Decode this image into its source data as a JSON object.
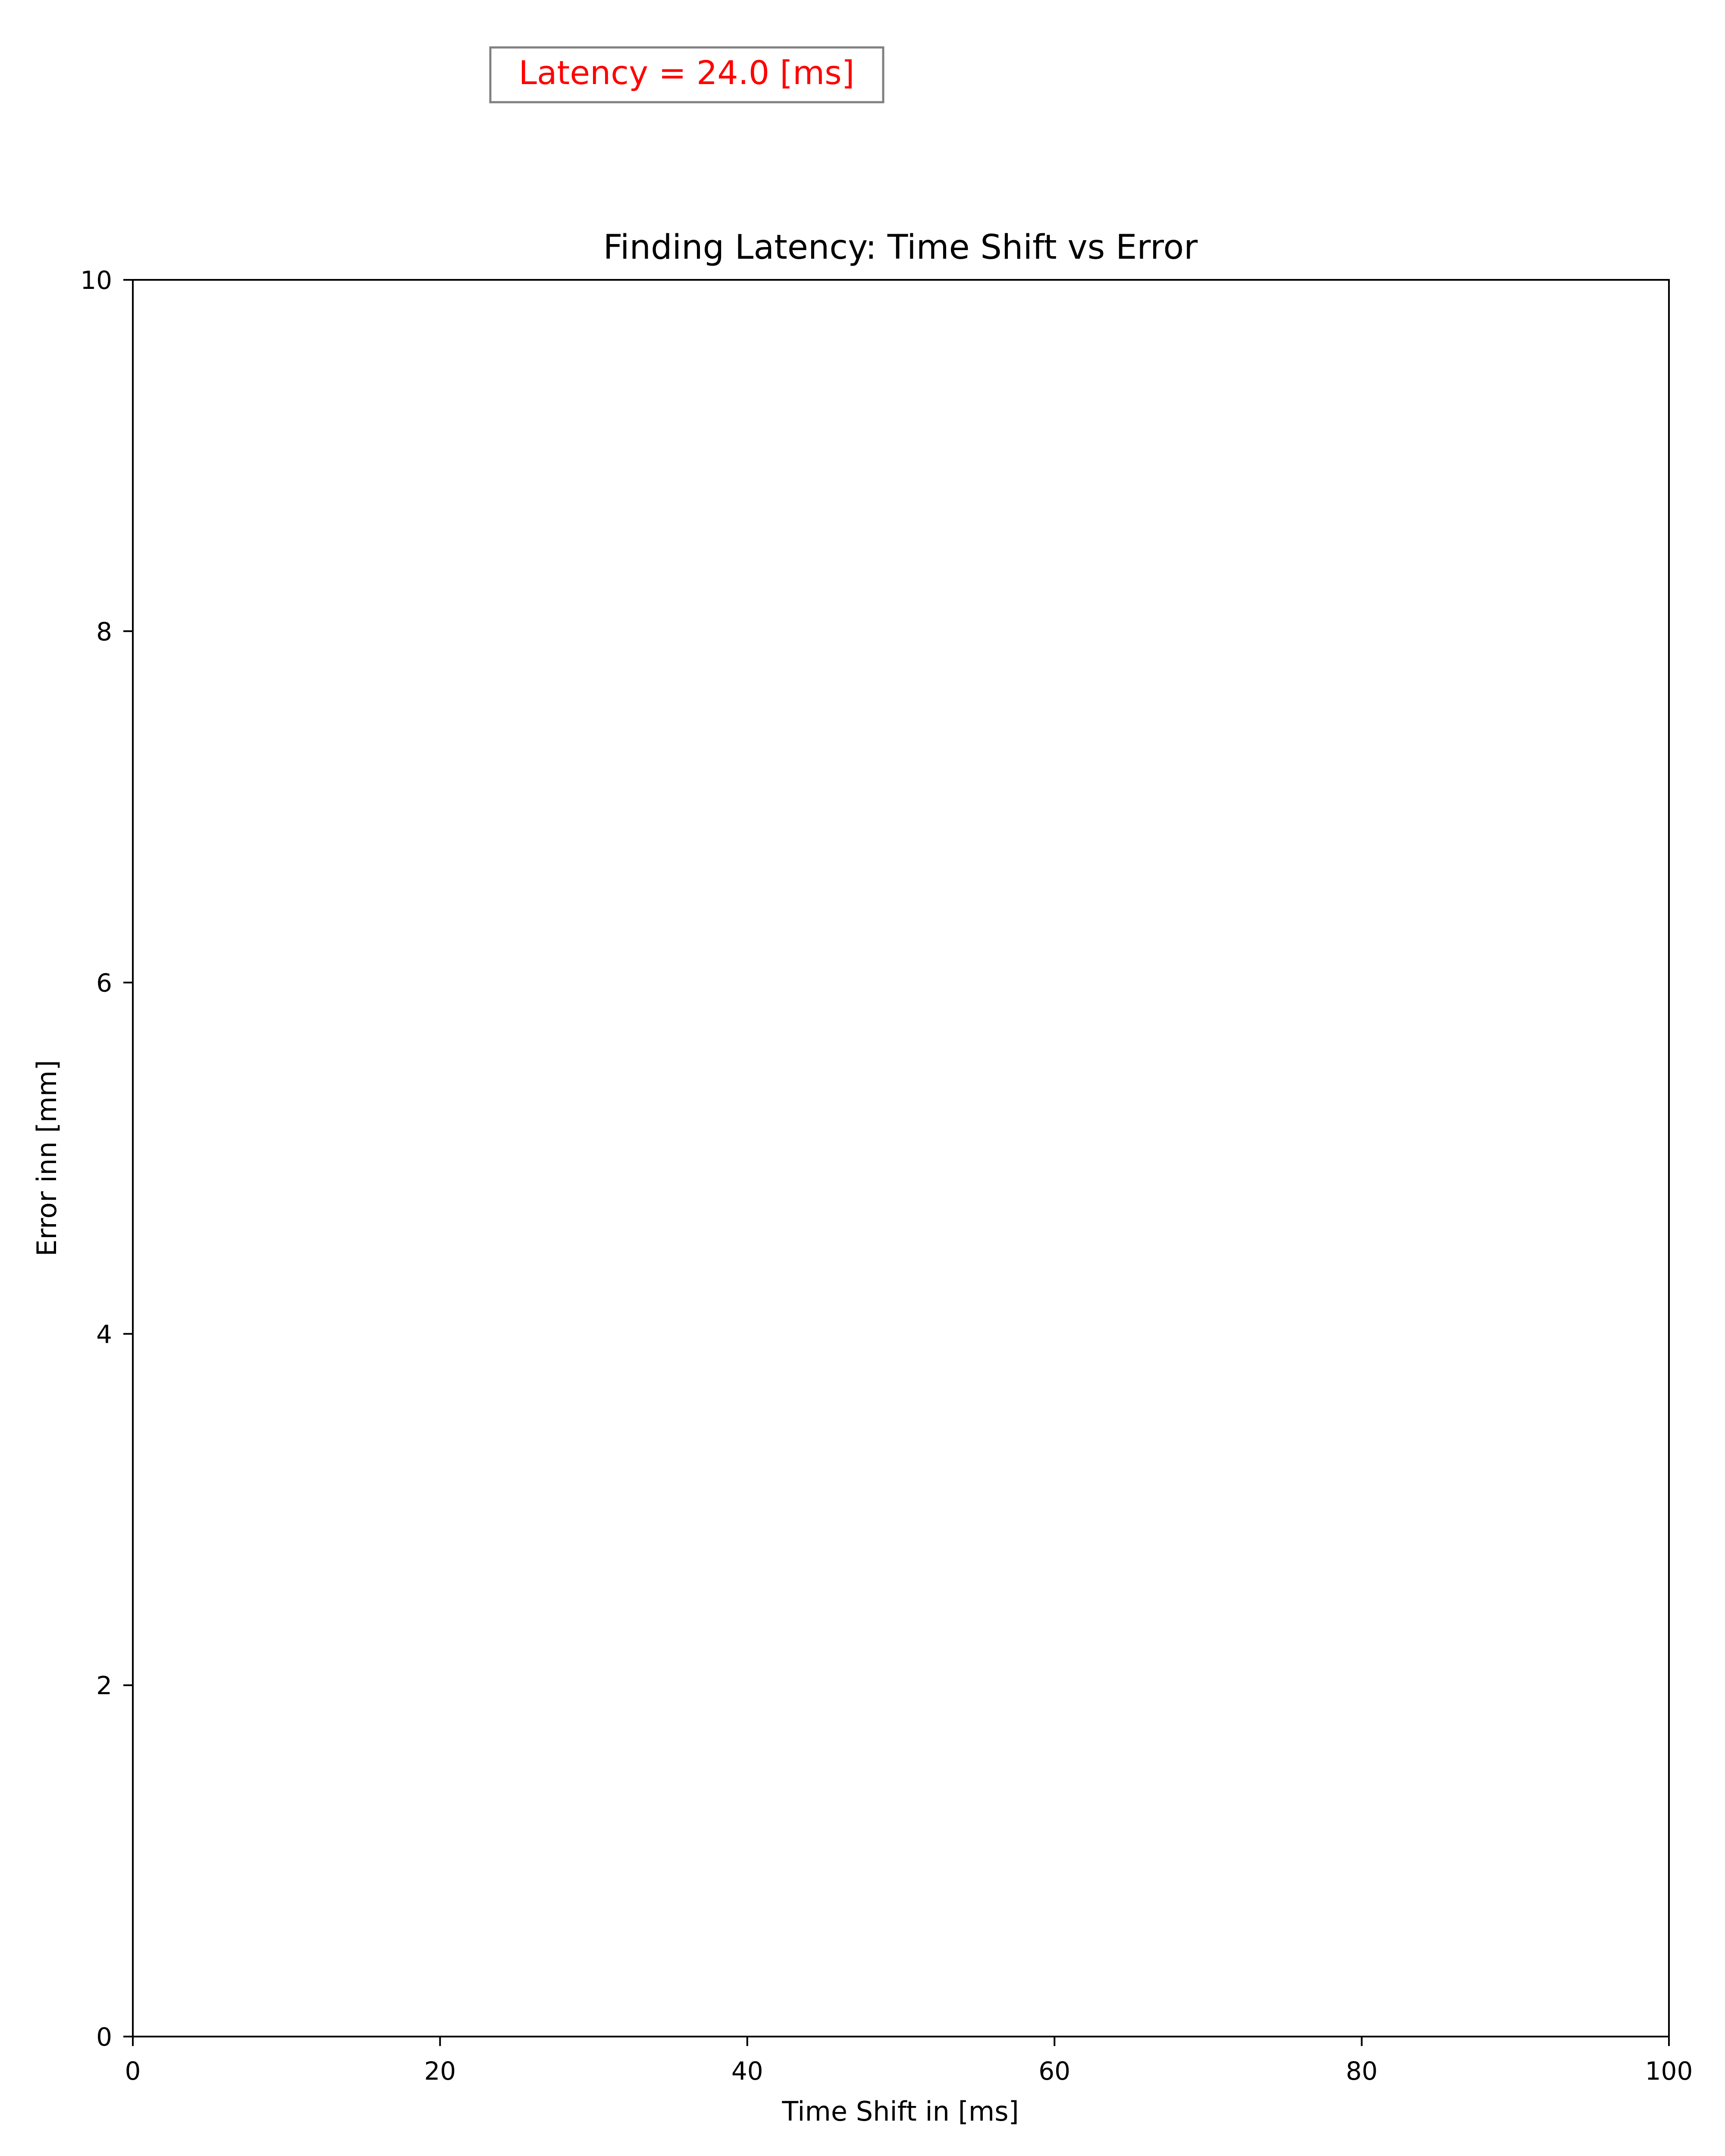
{
  "annotation": {
    "text": "Latency = 24.0 [ms]",
    "color": "#ff0000",
    "border_color": "#808080"
  },
  "chart_data": {
    "type": "line",
    "title": "Finding Latency: Time Shift vs Error",
    "xlabel": "Time Shift in [ms]",
    "ylabel": "Error inn [mm]",
    "xlim": [
      0,
      100
    ],
    "ylim": [
      0,
      10
    ],
    "xticks": [
      0,
      20,
      40,
      60,
      80,
      100
    ],
    "yticks": [
      0,
      2,
      4,
      6,
      8,
      10
    ],
    "xtick_labels": [
      "0",
      "20",
      "40",
      "60",
      "80",
      "100"
    ],
    "ytick_labels": [
      "0",
      "2",
      "4",
      "6",
      "8",
      "10"
    ],
    "grid": false,
    "series": []
  }
}
